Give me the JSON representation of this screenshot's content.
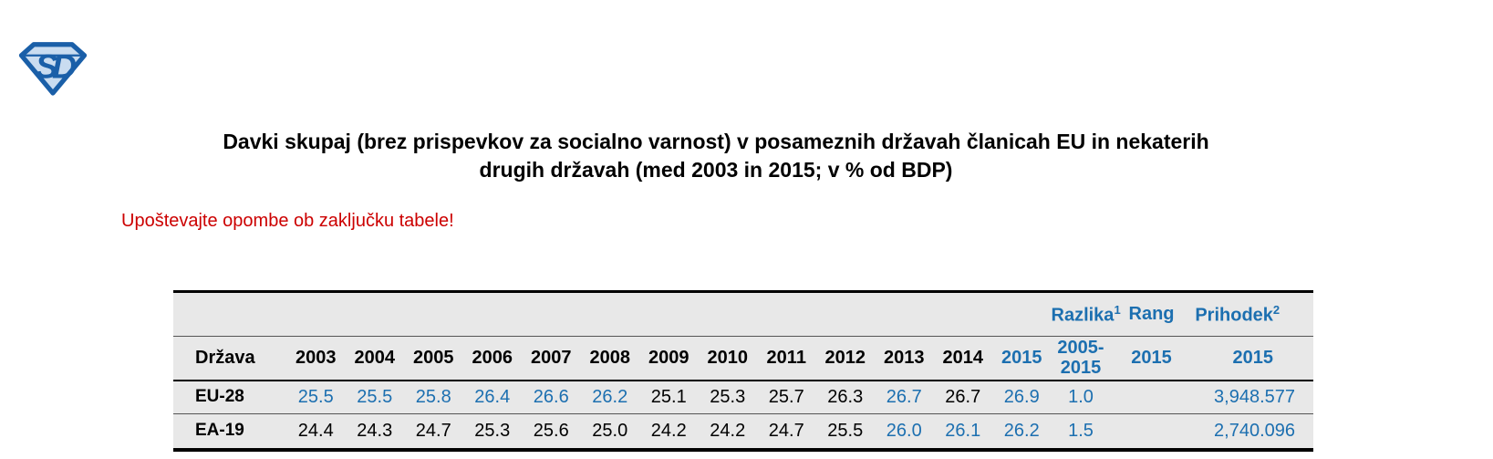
{
  "logo": {
    "text": "SD"
  },
  "header": {
    "title_line1": "Davki skupaj (brez prispevkov za socialno varnost) v posameznih državah članicah EU in nekaterih",
    "title_line2": "drugih državah (med 2003 in 2015; v % od BDP)",
    "note": "Upoštevajte opombe ob zaključku tabele!"
  },
  "colors": {
    "accent_blue": "#1c6fb0",
    "note_red": "#cc0000",
    "table_bg": "#e8e8e8",
    "logo_blue": "#1a5fa8",
    "logo_fill": "#c9dcf0"
  },
  "table": {
    "country_column_label": "Država",
    "group_headers": {
      "razlika": {
        "label": "Razlika",
        "sup": "1"
      },
      "rang": {
        "label": "Rang",
        "sup": ""
      },
      "prihodek": {
        "label": "Prihodek",
        "sup": "2"
      }
    },
    "sub_headers": {
      "razlika_period": "2005-2015",
      "rang_year": "2015",
      "prihodek_year": "2015"
    },
    "year_headers": [
      {
        "label": "2003",
        "blue": false
      },
      {
        "label": "2004",
        "blue": false
      },
      {
        "label": "2005",
        "blue": false
      },
      {
        "label": "2006",
        "blue": false
      },
      {
        "label": "2007",
        "blue": false
      },
      {
        "label": "2008",
        "blue": false
      },
      {
        "label": "2009",
        "blue": false
      },
      {
        "label": "2010",
        "blue": false
      },
      {
        "label": "2011",
        "blue": false
      },
      {
        "label": "2012",
        "blue": false
      },
      {
        "label": "2013",
        "blue": false
      },
      {
        "label": "2014",
        "blue": false
      },
      {
        "label": "2015",
        "blue": true
      }
    ],
    "rows": [
      {
        "label": "EU-28",
        "values": [
          {
            "v": "25.5",
            "blue": true
          },
          {
            "v": "25.5",
            "blue": true
          },
          {
            "v": "25.8",
            "blue": true
          },
          {
            "v": "26.4",
            "blue": true
          },
          {
            "v": "26.6",
            "blue": true
          },
          {
            "v": "26.2",
            "blue": true
          },
          {
            "v": "25.1",
            "blue": false
          },
          {
            "v": "25.3",
            "blue": false
          },
          {
            "v": "25.7",
            "blue": false
          },
          {
            "v": "26.3",
            "blue": false
          },
          {
            "v": "26.7",
            "blue": true
          },
          {
            "v": "26.7",
            "blue": false
          },
          {
            "v": "26.9",
            "blue": true
          }
        ],
        "razlika": {
          "v": "1.0",
          "blue": true
        },
        "rang": {
          "v": "",
          "blue": false
        },
        "prihodek": {
          "v": "3,948.577",
          "blue": true
        }
      },
      {
        "label": "EA-19",
        "values": [
          {
            "v": "24.4",
            "blue": false
          },
          {
            "v": "24.3",
            "blue": false
          },
          {
            "v": "24.7",
            "blue": false
          },
          {
            "v": "25.3",
            "blue": false
          },
          {
            "v": "25.6",
            "blue": false
          },
          {
            "v": "25.0",
            "blue": false
          },
          {
            "v": "24.2",
            "blue": false
          },
          {
            "v": "24.2",
            "blue": false
          },
          {
            "v": "24.7",
            "blue": false
          },
          {
            "v": "25.5",
            "blue": false
          },
          {
            "v": "26.0",
            "blue": true
          },
          {
            "v": "26.1",
            "blue": true
          },
          {
            "v": "26.2",
            "blue": true
          }
        ],
        "razlika": {
          "v": "1.5",
          "blue": true
        },
        "rang": {
          "v": "",
          "blue": false
        },
        "prihodek": {
          "v": "2,740.096",
          "blue": true
        }
      }
    ]
  }
}
